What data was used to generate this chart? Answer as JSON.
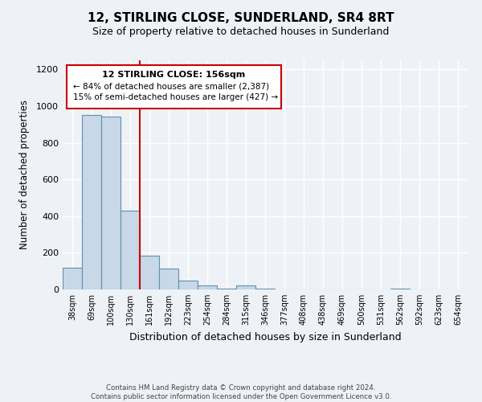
{
  "title": "12, STIRLING CLOSE, SUNDERLAND, SR4 8RT",
  "subtitle": "Size of property relative to detached houses in Sunderland",
  "xlabel": "Distribution of detached houses by size in Sunderland",
  "ylabel": "Number of detached properties",
  "footer_lines": [
    "Contains HM Land Registry data © Crown copyright and database right 2024.",
    "Contains public sector information licensed under the Open Government Licence v3.0."
  ],
  "bar_labels": [
    "38sqm",
    "69sqm",
    "100sqm",
    "130sqm",
    "161sqm",
    "192sqm",
    "223sqm",
    "254sqm",
    "284sqm",
    "315sqm",
    "346sqm",
    "377sqm",
    "408sqm",
    "438sqm",
    "469sqm",
    "500sqm",
    "531sqm",
    "562sqm",
    "592sqm",
    "623sqm",
    "654sqm"
  ],
  "bar_values": [
    120,
    950,
    945,
    430,
    185,
    115,
    47,
    22,
    5,
    20,
    5,
    0,
    0,
    0,
    0,
    0,
    0,
    5,
    0,
    0,
    0
  ],
  "bar_color": "#c8d8e8",
  "bar_edge_color": "#6090b0",
  "vline_x": 3.5,
  "property_line_label": "12 STIRLING CLOSE: 156sqm",
  "annotation_line1": "← 84% of detached houses are smaller (2,387)",
  "annotation_line2": "15% of semi-detached houses are larger (427) →",
  "annotation_box_edge": "#cc0000",
  "vline_color": "#cc0000",
  "ylim": [
    0,
    1250
  ],
  "yticks": [
    0,
    200,
    400,
    600,
    800,
    1000,
    1200
  ],
  "background_color": "#eef2f7",
  "plot_background": "#eef2f7",
  "grid_color": "#ffffff",
  "annotation_fontsize": 7.5,
  "title_fontsize": 11,
  "subtitle_fontsize": 9
}
